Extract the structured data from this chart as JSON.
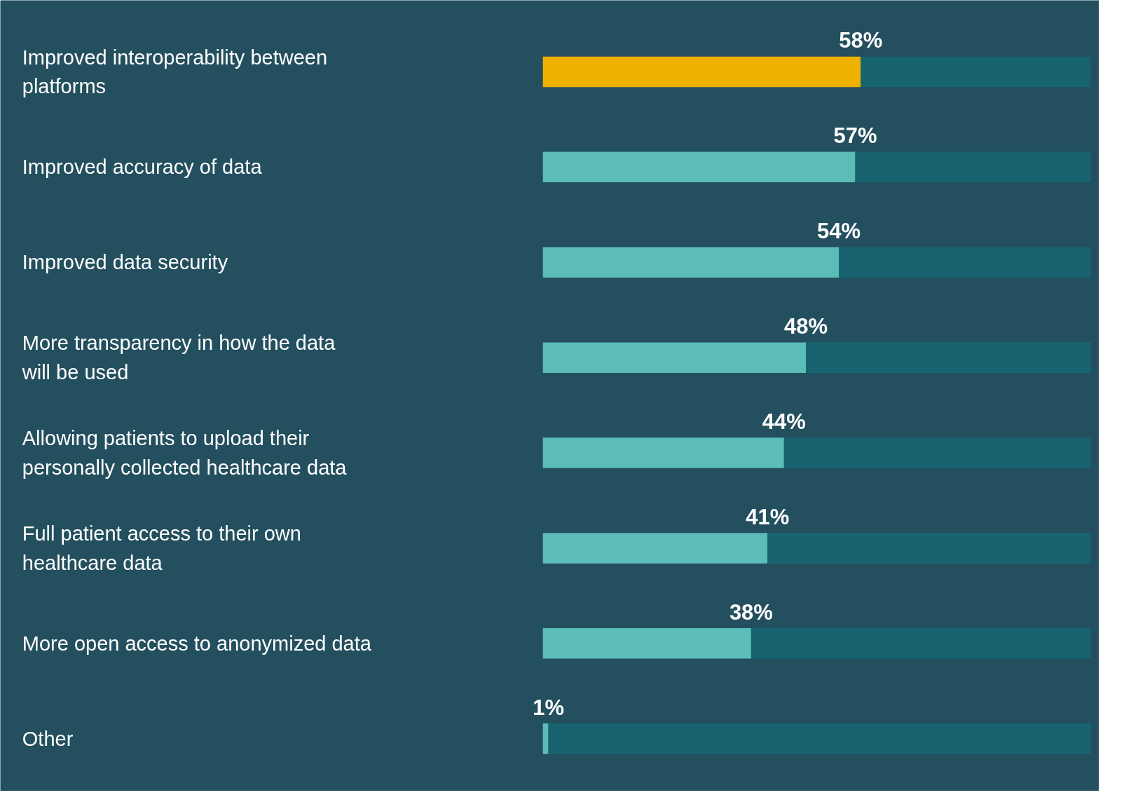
{
  "chart_data": {
    "type": "bar",
    "orientation": "horizontal",
    "stacked": true,
    "categories": [
      "Improved interoperability between platforms",
      "Improved accuracy of data",
      "Improved data security",
      "More transparency in how the data will be used",
      "Allowing patients to upload their personally collected healthcare data",
      "Full patient access to their own healthcare data",
      "More open access to anonymized data",
      "Other"
    ],
    "series": [
      {
        "colors": [
          "#efb100",
          "#5bbcb8",
          "#5bbcb8",
          "#5bbcb8",
          "#5bbcb8",
          "#5bbcb8",
          "#5bbcb8",
          "#5bbcb8"
        ],
        "values": [
          58,
          57,
          54,
          48,
          44,
          41,
          38,
          1
        ],
        "value_labels": [
          "58%",
          "57%",
          "54%",
          "48%",
          "44%",
          "41%",
          "38%",
          "1%"
        ]
      },
      {
        "color": "#176470",
        "values": [
          42,
          43,
          46,
          52,
          56,
          59,
          62,
          99
        ]
      }
    ],
    "xlim": [
      0,
      100
    ],
    "grid": false
  }
}
